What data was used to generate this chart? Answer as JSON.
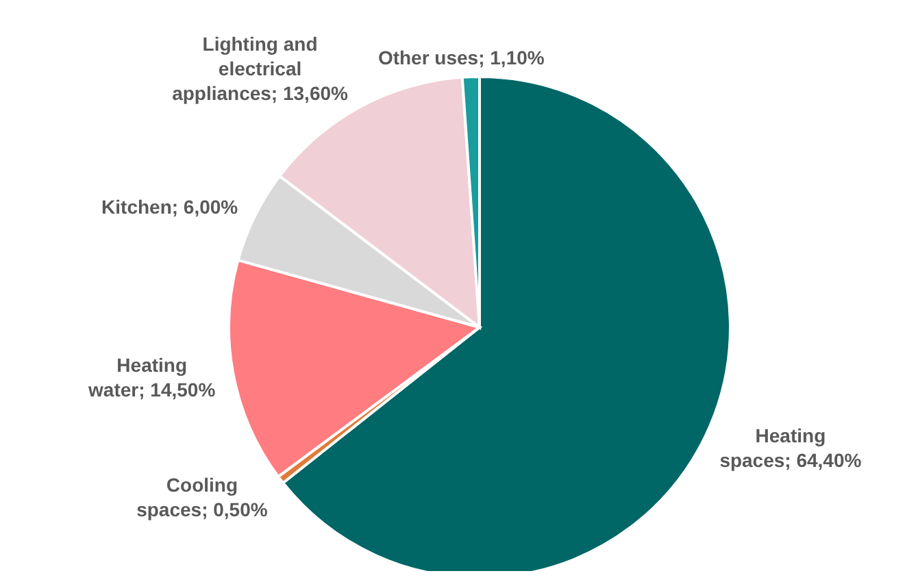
{
  "chart_data": {
    "type": "pie",
    "categories": [
      "Heating spaces",
      "Cooling spaces",
      "Heating water",
      "Kitchen",
      "Lighting and electrical appliances",
      "Other uses"
    ],
    "values": [
      64.4,
      0.5,
      14.5,
      6.0,
      13.6,
      1.1
    ],
    "value_labels": [
      "64,40%",
      "0,50%",
      "14,50%",
      "6,00%",
      "13,60%",
      "1,10%"
    ],
    "colors": [
      "#006666",
      "#e07b39",
      "#ff7c80",
      "#d9d9d9",
      "#f0cfd6",
      "#199c9c"
    ],
    "legend": false
  }
}
